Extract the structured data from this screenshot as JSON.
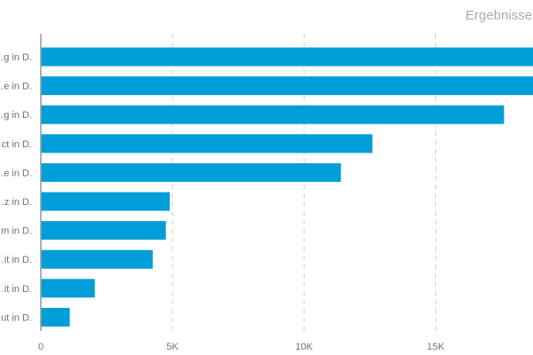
{
  "chart_data": {
    "type": "bar",
    "orientation": "horizontal",
    "title": "Ergebnisse",
    "categories": [
      "…g in D.",
      "…e in D.",
      "…g in D.",
      "…ct in D.",
      "…e in D.",
      "…z in D.",
      "…m in D.",
      "…it in D.",
      "…it in D.",
      "…ut in D."
    ],
    "values": [
      21000,
      20500,
      17600,
      12600,
      11400,
      4900,
      4750,
      4250,
      2050,
      1100
    ],
    "xlim": [
      0,
      18700
    ],
    "xticks": [
      0,
      5000,
      10000,
      15000
    ],
    "xtick_labels": [
      "0",
      "5K",
      "10K",
      "15K"
    ],
    "grid": "vertical-dashed",
    "bar_color": "#009ed8"
  }
}
